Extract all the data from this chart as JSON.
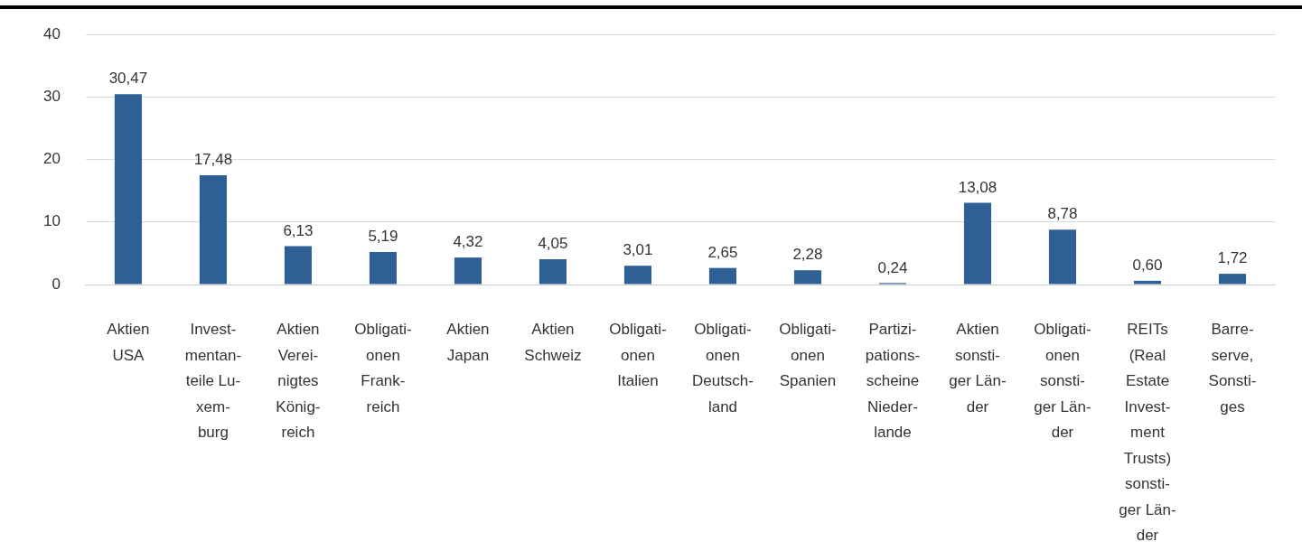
{
  "chart_data": {
    "type": "bar",
    "categories": [
      "Aktien\nUSA",
      "Invest-\nmentan-\nteile Lu-\nxem-\nburg",
      "Aktien\nVerei-\nnigtes\nKönig-\nreich",
      "Obligati-\nonen\nFrank-\nreich",
      "Aktien\nJapan",
      "Aktien\nSchweiz",
      "Obligati-\nonen\nItalien",
      "Obligati-\nonen\nDeutsch-\nland",
      "Obligati-\nonen\nSpanien",
      "Partizi-\npations-\nscheine\nNieder-\nlande",
      "Aktien\nsonsti-\nger Län-\nder",
      "Obligati-\nonen\nsonsti-\nger Län-\nder",
      "REITs\n(Real\nEstate\nInvest-\nment\nTrusts)\nsonsti-\nger Län-\nder",
      "Barre-\nserve,\nSonsti-\nges"
    ],
    "values": [
      30.47,
      17.48,
      6.13,
      5.19,
      4.32,
      4.05,
      3.01,
      2.65,
      2.28,
      0.24,
      13.08,
      8.78,
      0.6,
      1.72
    ],
    "value_labels": [
      "30,47",
      "17,48",
      "6,13",
      "5,19",
      "4,32",
      "4,05",
      "3,01",
      "2,65",
      "2,28",
      "0,24",
      "13,08",
      "8,78",
      "0,60",
      "1,72"
    ],
    "color": "#2e6096",
    "ylim": [
      0,
      40
    ],
    "yticks": [
      0,
      10,
      20,
      30,
      40
    ],
    "grid": "y",
    "legend": false
  }
}
